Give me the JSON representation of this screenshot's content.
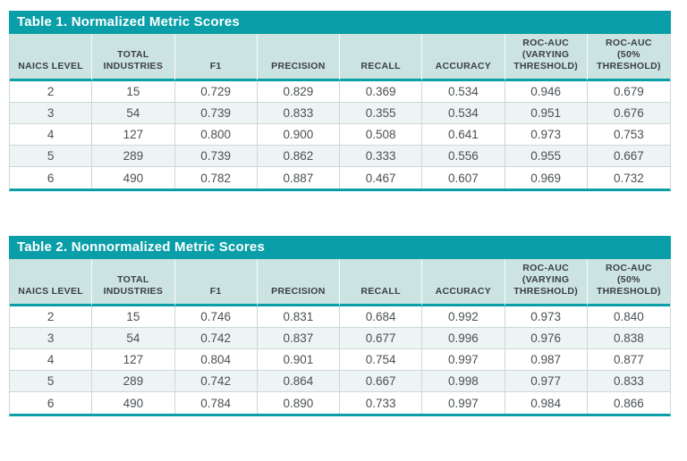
{
  "colors": {
    "accent_teal": "#0A9FA8",
    "header_background": "#CBE3E1",
    "alternate_row_background": "#EDF5F4",
    "grid_line": "#CBD8D7"
  },
  "tables": [
    {
      "title": "Table 1. Normalized Metric Scores",
      "columns": [
        "NAICS LEVEL",
        "TOTAL\nINDUSTRIES",
        "F1",
        "PRECISION",
        "RECALL",
        "ACCURACY",
        "ROC-AUC\n(VARYING\nTHRESHOLD)",
        "ROC-AUC\n(50%\nTHRESHOLD)"
      ],
      "rows": [
        [
          "2",
          "15",
          "0.729",
          "0.829",
          "0.369",
          "0.534",
          "0.946",
          "0.679"
        ],
        [
          "3",
          "54",
          "0.739",
          "0.833",
          "0.355",
          "0.534",
          "0.951",
          "0.676"
        ],
        [
          "4",
          "127",
          "0.800",
          "0.900",
          "0.508",
          "0.641",
          "0.973",
          "0.753"
        ],
        [
          "5",
          "289",
          "0.739",
          "0.862",
          "0.333",
          "0.556",
          "0.955",
          "0.667"
        ],
        [
          "6",
          "490",
          "0.782",
          "0.887",
          "0.467",
          "0.607",
          "0.969",
          "0.732"
        ]
      ]
    },
    {
      "title": "Table 2. Nonnormalized Metric Scores",
      "columns": [
        "NAICS LEVEL",
        "TOTAL\nINDUSTRIES",
        "F1",
        "PRECISION",
        "RECALL",
        "ACCURACY",
        "ROC-AUC\n(VARYING\nTHRESHOLD)",
        "ROC-AUC\n(50%\nTHRESHOLD)"
      ],
      "rows": [
        [
          "2",
          "15",
          "0.746",
          "0.831",
          "0.684",
          "0.992",
          "0.973",
          "0.840"
        ],
        [
          "3",
          "54",
          "0.742",
          "0.837",
          "0.677",
          "0.996",
          "0.976",
          "0.838"
        ],
        [
          "4",
          "127",
          "0.804",
          "0.901",
          "0.754",
          "0.997",
          "0.987",
          "0.877"
        ],
        [
          "5",
          "289",
          "0.742",
          "0.864",
          "0.667",
          "0.998",
          "0.977",
          "0.833"
        ],
        [
          "6",
          "490",
          "0.784",
          "0.890",
          "0.733",
          "0.997",
          "0.984",
          "0.866"
        ]
      ]
    }
  ]
}
